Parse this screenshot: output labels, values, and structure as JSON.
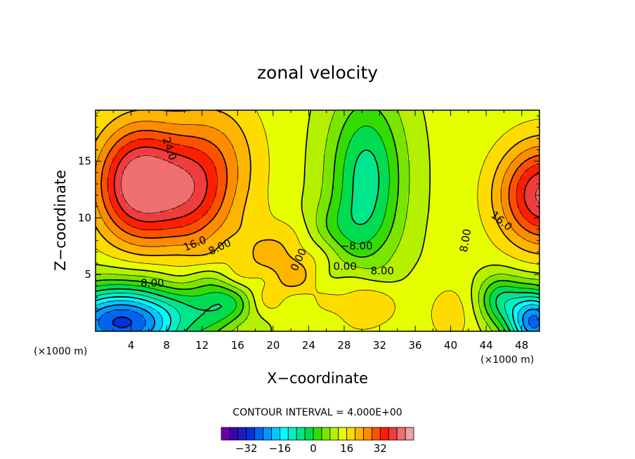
{
  "chart_data": {
    "type": "heatmap",
    "title": "zonal velocity",
    "xlabel": "X−coordinate",
    "ylabel": "Z−coordinate",
    "x_unit": "(×1000 m)",
    "y_unit": "(×1000 m)",
    "xlim": [
      0,
      50
    ],
    "ylim": [
      0,
      19.5
    ],
    "x_ticks": [
      4,
      8,
      12,
      16,
      20,
      24,
      28,
      32,
      36,
      40,
      44,
      48
    ],
    "y_ticks": [
      5,
      10,
      15
    ],
    "contour_interval_text": "CONTOUR INTERVAL = 4.000E+00",
    "contour_labels": [
      {
        "text": "24.0",
        "x": 8.3,
        "z": 16.1,
        "angle": 72
      },
      {
        "text": "16.0",
        "x": 11.2,
        "z": 7.7,
        "angle": -22
      },
      {
        "text": "8.00",
        "x": 14.0,
        "z": 7.4,
        "angle": -25
      },
      {
        "text": "0.00",
        "x": 22.9,
        "z": 6.3,
        "angle": -65
      },
      {
        "text": "−8.00",
        "x": 29.4,
        "z": 7.5,
        "angle": 0
      },
      {
        "text": "0.00",
        "x": 28.1,
        "z": 5.7,
        "angle": 0
      },
      {
        "text": "8.00",
        "x": 32.3,
        "z": 5.3,
        "angle": 0
      },
      {
        "text": "8.00",
        "x": 41.7,
        "z": 8.0,
        "angle": -80
      },
      {
        "text": "16.0",
        "x": 45.7,
        "z": 9.7,
        "angle": 40
      },
      {
        "text": "8.00",
        "x": 6.4,
        "z": 4.2,
        "angle": 0
      }
    ],
    "field_features": [
      {
        "kind": "max",
        "x": 5,
        "z": 12.5,
        "value": 32
      },
      {
        "kind": "max",
        "x": 50,
        "z": 12,
        "value": 28
      },
      {
        "kind": "max",
        "x": 30,
        "z": 1.8,
        "value": 14
      },
      {
        "kind": "min",
        "x": 3.5,
        "z": 1.3,
        "value": -30
      },
      {
        "kind": "min",
        "x": 30.5,
        "z": 13,
        "value": -11
      },
      {
        "kind": "min",
        "x": 49.5,
        "z": 0.8,
        "value": -28
      },
      {
        "kind": "min",
        "x": 45,
        "z": 2.5,
        "value": -10
      }
    ],
    "colorbar": {
      "levels": [
        -36,
        -32,
        -28,
        -24,
        -20,
        -16,
        -12,
        -8,
        -4,
        0,
        4,
        8,
        12,
        16,
        20,
        24,
        28,
        32,
        36
      ],
      "tick_labels": [
        "−32",
        "−16",
        "0",
        "16",
        "32"
      ],
      "tick_values": [
        -32,
        -16,
        0,
        16,
        32
      ],
      "colors": [
        "#6e00a8",
        "#3c00b4",
        "#1e1eb4",
        "#0032dc",
        "#0064f0",
        "#0096ff",
        "#00c8ff",
        "#00ffff",
        "#00f0c8",
        "#00e68c",
        "#00dc50",
        "#32dc00",
        "#78e600",
        "#b4f000",
        "#e6ff00",
        "#ffdc00",
        "#ffb400",
        "#ff8c00",
        "#ff5000",
        "#ff1e00",
        "#f03c3c",
        "#f07070",
        "#f0a0a0"
      ]
    }
  }
}
